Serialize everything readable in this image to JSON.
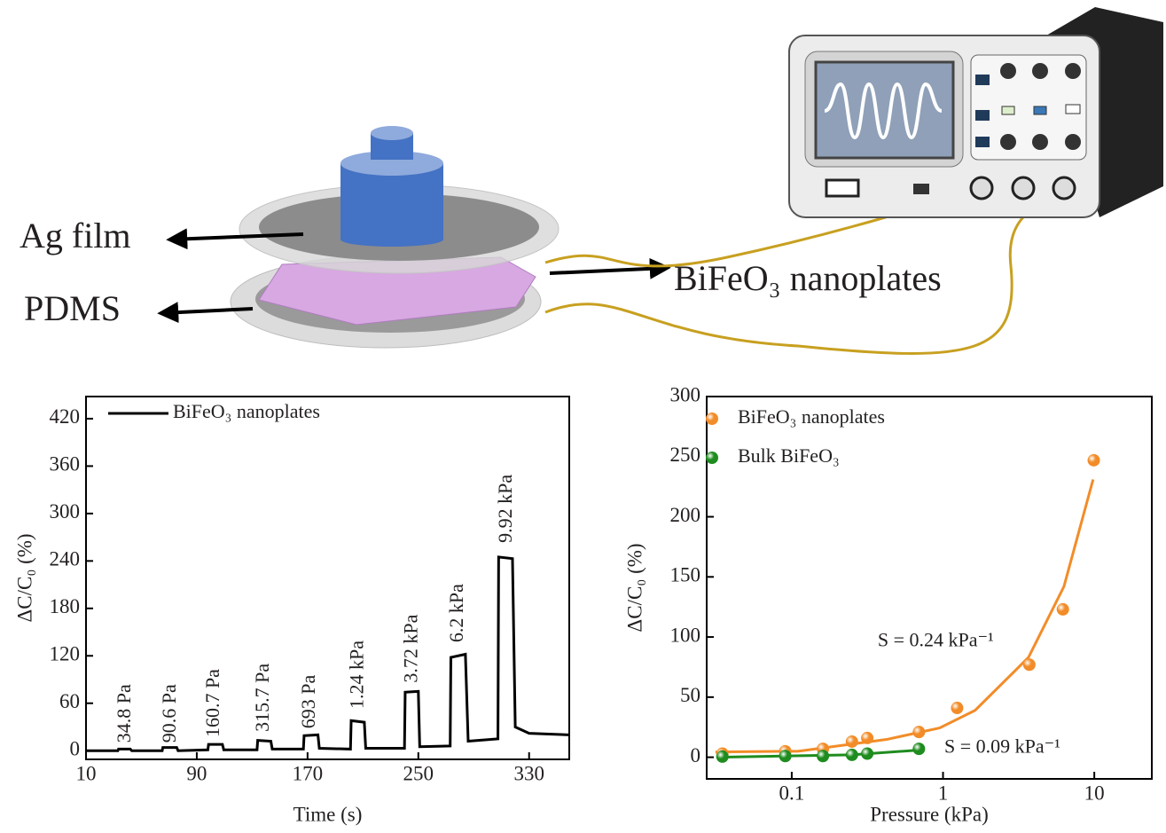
{
  "diagram": {
    "labels": [
      "Ag film",
      "PDMS",
      "BiFeO₃ nanoplates"
    ]
  },
  "chart_data": [
    {
      "type": "line",
      "xlabel": "Time (s)",
      "ylabel": "ΔC/C₀ (%)",
      "xlim": [
        10,
        359
      ],
      "ylim": [
        -11,
        448
      ],
      "xticks": [
        10,
        90,
        170,
        250,
        330
      ],
      "yticks": [
        0,
        60,
        120,
        180,
        240,
        300,
        360,
        420
      ],
      "x": [
        10,
        33,
        33.5,
        42,
        43,
        65,
        65.5,
        75.5,
        76.5,
        98,
        98.5,
        108.5,
        109.5,
        133.5,
        134,
        143.5,
        144.5,
        167,
        167.5,
        177.5,
        178.5,
        201,
        201.5,
        211,
        212,
        240,
        240.5,
        250,
        251,
        273,
        273.5,
        284,
        286,
        307.5,
        308,
        318,
        320,
        330,
        359
      ],
      "series": [
        {
          "name": "BiFeO₃ nanoplates",
          "color": "#000000",
          "values": [
            0,
            0,
            2,
            2,
            0,
            0,
            4,
            4,
            0,
            1,
            8,
            8,
            1,
            1,
            13,
            12,
            2,
            2,
            19,
            20,
            3,
            2,
            38,
            36,
            3,
            3,
            74,
            75,
            5,
            6,
            118,
            122,
            12,
            15,
            245,
            243,
            30,
            22,
            20
          ]
        }
      ],
      "annotation_color": "#ee1c25",
      "annotations": [
        {
          "text": "34.8 Pa",
          "x": 38.8,
          "y": 10
        },
        {
          "text": "90.6 Pa",
          "x": 71.4,
          "y": 10
        },
        {
          "text": "160.7 Pa",
          "x": 102.8,
          "y": 17
        },
        {
          "text": "315.7 Pa",
          "x": 138.6,
          "y": 24
        },
        {
          "text": "693 Pa",
          "x": 171.9,
          "y": 28
        },
        {
          "text": "1.24 kPa",
          "x": 207,
          "y": 53
        },
        {
          "text": "3.72 kPa",
          "x": 246,
          "y": 86
        },
        {
          "text": "6.2 kPa",
          "x": 279,
          "y": 137
        },
        {
          "text": "9.92 kPa",
          "x": 314,
          "y": 263
        }
      ]
    },
    {
      "type": "scatter",
      "xlabel": "Pressure (kPa)",
      "ylabel": "ΔC/C₀ (%)",
      "xscale": "log",
      "xlim": [
        0.0274,
        24
      ],
      "ylim": [
        -18,
        300
      ],
      "xticks": [
        0.1,
        1,
        10
      ],
      "yticks": [
        0,
        50,
        100,
        150,
        200,
        250,
        300
      ],
      "series": [
        {
          "name": "BiFeO₃ nanoplates",
          "color": "#f28c28",
          "x": [
            0.0348,
            0.0906,
            0.1607,
            0.25,
            0.3157,
            0.693,
            1.24,
            3.72,
            6.2,
            9.92
          ],
          "values": [
            3,
            5,
            7,
            13,
            16,
            21,
            41,
            77,
            123,
            247
          ],
          "fit": {
            "x": [
              0.0313,
              0.11,
              0.424,
              0.95,
              1.63,
              3.67,
              6.3,
              9.82
            ],
            "values": [
              4.4,
              5,
              14.8,
              24.4,
              39,
              83,
              142,
              231
            ]
          }
        },
        {
          "name": "Bulk BiFeO₃",
          "color": "#1e8c1e",
          "x": [
            0.0348,
            0.0906,
            0.1607,
            0.25,
            0.3157,
            0.693
          ],
          "values": [
            0.5,
            1,
            1,
            2,
            3,
            7
          ],
          "fit": {
            "x": [
              0.032,
              0.25,
              0.7
            ],
            "values": [
              0,
              2,
              6
            ]
          }
        }
      ],
      "annotations": [
        {
          "text": "S = 0.24 kPa⁻¹",
          "x": 0.37,
          "y": 96,
          "color": "#f28c28"
        },
        {
          "text": "S = 0.09 kPa⁻¹",
          "x": 1.02,
          "y": 7.4,
          "color": "#1e8c1e"
        }
      ]
    }
  ]
}
